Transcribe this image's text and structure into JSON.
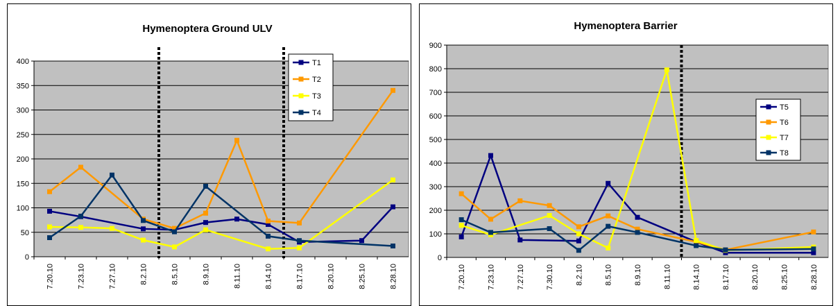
{
  "chart_data": [
    {
      "type": "line",
      "title": "Hymenoptera Ground ULV",
      "xlabel": "",
      "ylabel": "",
      "categories": [
        "7.20.10",
        "7.23.10",
        "7.27.10",
        "8.2.10",
        "8.5.10",
        "8.9.10",
        "8.11.10",
        "8.14.10",
        "8.17.10",
        "8.20.10",
        "8.25.10",
        "8.28.10"
      ],
      "ylim": [
        0,
        400
      ],
      "yticks": [
        0,
        50,
        100,
        150,
        200,
        250,
        300,
        350,
        400
      ],
      "grid": true,
      "legend_position": "top-right",
      "plot_background": "#c0c0c0",
      "vertical_markers": [
        3.5,
        7.5
      ],
      "series": [
        {
          "name": "T1",
          "color": "#000080",
          "points": [
            [
              0,
              93
            ],
            [
              1,
              82
            ],
            [
              3,
              57
            ],
            [
              4,
              55
            ],
            [
              5,
              70
            ],
            [
              6,
              77
            ],
            [
              7,
              66
            ],
            [
              8,
              30
            ],
            [
              10,
              33
            ],
            [
              11,
              102
            ]
          ]
        },
        {
          "name": "T2",
          "color": "#ff9900",
          "points": [
            [
              0,
              133
            ],
            [
              1,
              183
            ],
            [
              3,
              77
            ],
            [
              4,
              58
            ],
            [
              5,
              89
            ],
            [
              6,
              238
            ],
            [
              7,
              73
            ],
            [
              8,
              69
            ],
            [
              11,
              340
            ]
          ]
        },
        {
          "name": "T3",
          "color": "#ffff00",
          "points": [
            [
              0,
              61
            ],
            [
              1,
              60
            ],
            [
              2,
              58
            ],
            [
              3,
              34
            ],
            [
              4,
              20
            ],
            [
              5,
              55
            ],
            [
              7,
              16
            ],
            [
              8,
              18
            ],
            [
              11,
              157
            ]
          ]
        },
        {
          "name": "T4",
          "color": "#003366",
          "points": [
            [
              0,
              39
            ],
            [
              1,
              83
            ],
            [
              2,
              167
            ],
            [
              3,
              74
            ],
            [
              4,
              51
            ],
            [
              5,
              144
            ],
            [
              7,
              42
            ],
            [
              8,
              33
            ],
            [
              11,
              22
            ]
          ]
        }
      ]
    },
    {
      "type": "line",
      "title": "Hymenoptera Barrier",
      "xlabel": "",
      "ylabel": "",
      "categories": [
        "7.20.10",
        "7.23.10",
        "7.27.10",
        "7.30.10",
        "8.2.10",
        "8.5.10",
        "8.9.10",
        "8.11.10",
        "8.14.10",
        "8.17.10",
        "8.20.10",
        "8.25.10",
        "8.28.10"
      ],
      "ylim": [
        0,
        900
      ],
      "yticks": [
        0,
        100,
        200,
        300,
        400,
        500,
        600,
        700,
        800,
        900
      ],
      "grid": true,
      "legend_position": "right",
      "plot_background": "#c0c0c0",
      "vertical_markers": [
        7.5
      ],
      "series": [
        {
          "name": "T5",
          "color": "#000080",
          "points": [
            [
              0,
              87
            ],
            [
              1,
              432
            ],
            [
              2,
              74
            ],
            [
              4,
              70
            ],
            [
              5,
              314
            ],
            [
              6,
              170
            ],
            [
              8,
              66
            ],
            [
              9,
              20
            ],
            [
              12,
              20
            ]
          ]
        },
        {
          "name": "T6",
          "color": "#ff9900",
          "points": [
            [
              0,
              270
            ],
            [
              1,
              162
            ],
            [
              2,
              240
            ],
            [
              3,
              220
            ],
            [
              4,
              130
            ],
            [
              5,
              176
            ],
            [
              6,
              120
            ],
            [
              8,
              66
            ],
            [
              9,
              32
            ],
            [
              12,
              108
            ]
          ]
        },
        {
          "name": "T7",
          "color": "#ffff00",
          "points": [
            [
              0,
              136
            ],
            [
              1,
              96
            ],
            [
              3,
              178
            ],
            [
              4,
              100
            ],
            [
              5,
              40
            ],
            [
              7,
              795
            ],
            [
              8,
              72
            ],
            [
              9,
              30
            ],
            [
              12,
              44
            ]
          ]
        },
        {
          "name": "T8",
          "color": "#003366",
          "points": [
            [
              0,
              160
            ],
            [
              1,
              106
            ],
            [
              3,
              122
            ],
            [
              4,
              30
            ],
            [
              5,
              132
            ],
            [
              6,
              106
            ],
            [
              8,
              50
            ],
            [
              9,
              32
            ],
            [
              12,
              36
            ]
          ]
        }
      ]
    }
  ]
}
